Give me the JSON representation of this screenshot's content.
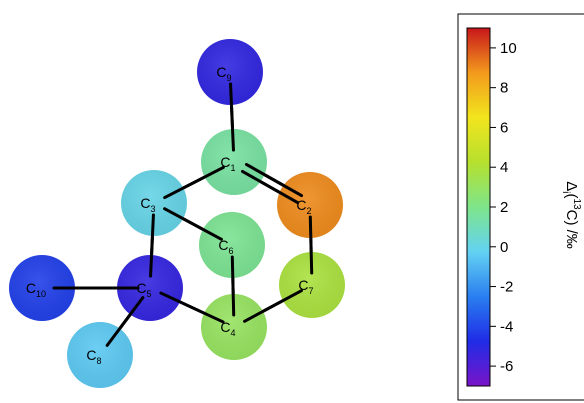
{
  "molecule": {
    "atoms": [
      {
        "id": "C9",
        "label": "C",
        "sub": "9",
        "value": -5.2
      },
      {
        "id": "C1",
        "label": "C",
        "sub": "1",
        "value": 1.5
      },
      {
        "id": "C2",
        "label": "C",
        "sub": "2",
        "value": 9.0
      },
      {
        "id": "C3",
        "label": "C",
        "sub": "3",
        "value": 0.0
      },
      {
        "id": "C6",
        "label": "C",
        "sub": "6",
        "value": 1.8
      },
      {
        "id": "C7",
        "label": "C",
        "sub": "7",
        "value": 3.8
      },
      {
        "id": "C10",
        "label": "C",
        "sub": "10",
        "value": -4.2
      },
      {
        "id": "C5",
        "label": "C",
        "sub": "5",
        "value": -5.3
      },
      {
        "id": "C4",
        "label": "C",
        "sub": "4",
        "value": 3.0
      },
      {
        "id": "C8",
        "label": "C",
        "sub": "8",
        "value": -0.5
      }
    ],
    "bonds": [
      {
        "from": "C9",
        "to": "C1",
        "order": 1
      },
      {
        "from": "C1",
        "to": "C3",
        "order": 1
      },
      {
        "from": "C1",
        "to": "C2",
        "order": 2
      },
      {
        "from": "C3",
        "to": "C6",
        "order": 1
      },
      {
        "from": "C3",
        "to": "C5",
        "order": 1
      },
      {
        "from": "C2",
        "to": "C7",
        "order": 1
      },
      {
        "from": "C7",
        "to": "C4",
        "order": 1
      },
      {
        "from": "C6",
        "to": "C4",
        "order": 1
      },
      {
        "from": "C5",
        "to": "C4",
        "order": 1
      },
      {
        "from": "C5",
        "to": "C10",
        "order": 1
      },
      {
        "from": "C5",
        "to": "C8",
        "order": 1
      }
    ]
  },
  "colorbar": {
    "min": -7,
    "max": 11,
    "ticks": [
      10,
      8,
      6,
      4,
      2,
      0,
      -2,
      -4,
      -6
    ],
    "tick_labels": [
      "10",
      "8",
      "6",
      "4",
      "2",
      "0",
      "-2",
      "-4",
      "-6"
    ],
    "label_main": "Δ",
    "label_sub": "i",
    "label_sup": "13",
    "label_rest": "C) /‰",
    "label_open": "(",
    "color_stops": [
      "#7a14c8",
      "#1f2ce6",
      "#2a7ff0",
      "#63d2f2",
      "#7ee58a",
      "#b6e02e",
      "#f2e51d",
      "#f39a1d",
      "#c8161a"
    ]
  }
}
